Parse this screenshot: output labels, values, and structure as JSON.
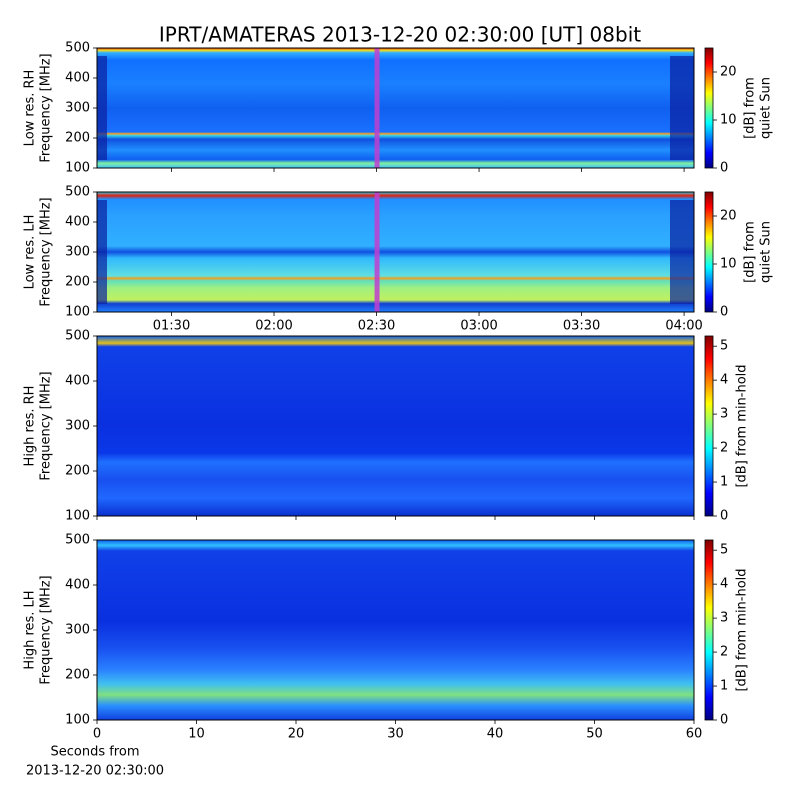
{
  "chart_data": [
    {
      "type": "spectrogram",
      "title": "IPRT/AMATERAS 2013-12-20 02:30:00 [UT]   08bit",
      "ylabel": [
        "Low res. RH",
        "Frequency [MHz]"
      ],
      "ylim": [
        100,
        500
      ],
      "yticks": [
        100,
        200,
        300,
        400,
        500
      ],
      "xlim": [
        68.2,
        242.9
      ],
      "xticks": [
        90,
        120,
        150,
        180,
        210,
        240
      ],
      "xticklabels": false,
      "highlight_x": 150,
      "colorbar_label": [
        "[dB] from",
        "quiet Sun"
      ],
      "clim": [
        0,
        25
      ],
      "cticks": [
        0,
        10,
        20
      ]
    },
    {
      "type": "spectrogram",
      "ylabel": [
        "Low res. LH",
        "Frequency [MHz]"
      ],
      "ylim": [
        100,
        500
      ],
      "yticks": [
        100,
        200,
        300,
        400,
        500
      ],
      "xlim": [
        68.2,
        242.9
      ],
      "xticks": [
        {
          "value": 90,
          "label": "01:30"
        },
        {
          "value": 120,
          "label": "02:00"
        },
        {
          "value": 150,
          "label": "02:30"
        },
        {
          "value": 180,
          "label": "03:00"
        },
        {
          "value": 210,
          "label": "03:30"
        },
        {
          "value": 240,
          "label": "04:00"
        }
      ],
      "xticklabels": true,
      "highlight_x": 150,
      "colorbar_label": [
        "[dB] from",
        "quiet Sun"
      ],
      "clim": [
        0,
        25
      ],
      "cticks": [
        0,
        10,
        20
      ]
    },
    {
      "type": "spectrogram",
      "ylabel": [
        "High res. RH",
        "Frequency [MHz]"
      ],
      "ylim": [
        100,
        500
      ],
      "yticks": [
        100,
        200,
        300,
        400,
        500
      ],
      "xlim": [
        0,
        60
      ],
      "xticks": [
        0,
        10,
        20,
        30,
        40,
        50,
        60
      ],
      "xticklabels": false,
      "colorbar_label": [
        "[dB] from min-hold"
      ],
      "clim": [
        0,
        5.3
      ],
      "cticks": [
        0,
        1,
        2,
        3,
        4,
        5
      ]
    },
    {
      "type": "spectrogram",
      "ylabel": [
        "High res. LH",
        "Frequency [MHz]"
      ],
      "ylim": [
        100,
        500
      ],
      "yticks": [
        100,
        200,
        300,
        400,
        500
      ],
      "xlim": [
        0,
        60
      ],
      "xticks": [
        0,
        10,
        20,
        30,
        40,
        50,
        60
      ],
      "xticklabels": true,
      "xlabel": [
        "Seconds from",
        "2013-12-20 02:30:00"
      ],
      "colorbar_label": [
        "[dB] from min-hold"
      ],
      "clim": [
        0,
        5.3
      ],
      "cticks": [
        0,
        1,
        2,
        3,
        4,
        5
      ]
    }
  ]
}
